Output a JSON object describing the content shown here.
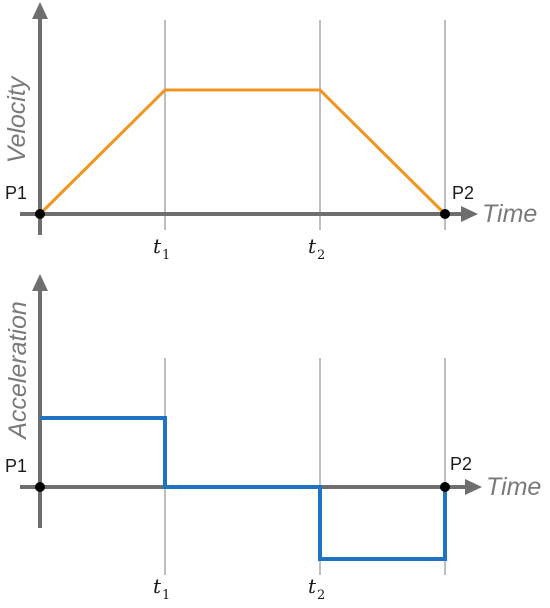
{
  "velocity_panel": {
    "y_axis_title": "Velocity",
    "x_axis_title": "Time",
    "start_point_label": "P1",
    "end_point_label": "P2",
    "ticks": [
      {
        "symbol": "t",
        "subscript": "1"
      },
      {
        "symbol": "t",
        "subscript": "2"
      }
    ],
    "curve_color": "#f0961e"
  },
  "acceleration_panel": {
    "y_axis_title": "Acceleration",
    "x_axis_title": "Time",
    "start_point_label": "P1",
    "end_point_label": "P2",
    "ticks": [
      {
        "symbol": "t",
        "subscript": "1"
      },
      {
        "symbol": "t",
        "subscript": "2"
      }
    ],
    "curve_color": "#1f73c1"
  },
  "colors": {
    "axis": "#6e6e6e",
    "guide": "#a9a9a9",
    "point": "#000000"
  }
}
